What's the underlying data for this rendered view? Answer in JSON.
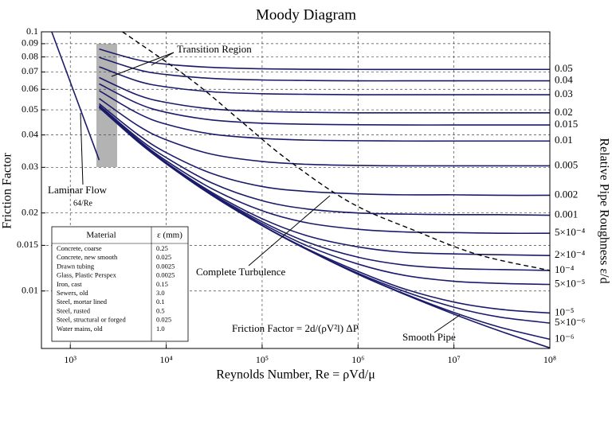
{
  "chart_data": {
    "type": "line",
    "title": "Moody Diagram",
    "x_label": "Reynolds Number, Re = ρVd/μ",
    "y_label": "Friction Factor",
    "y2_label": "Relative Pipe Roughness ε/d",
    "xscale": "log",
    "yscale": "log",
    "grid": true,
    "xlim": [
      500,
      100000000
    ],
    "ylim": [
      0.006,
      0.1
    ],
    "xticks": [
      {
        "value": 1000,
        "label": "10³"
      },
      {
        "value": 10000,
        "label": "10⁴"
      },
      {
        "value": 100000,
        "label": "10⁵"
      },
      {
        "value": 1000000,
        "label": "10⁶"
      },
      {
        "value": 10000000,
        "label": "10⁷"
      },
      {
        "value": 100000000,
        "label": "10⁸"
      }
    ],
    "yticks": [
      0.1,
      0.09,
      0.08,
      0.07,
      0.06,
      0.05,
      0.04,
      0.03,
      0.02,
      0.015,
      0.01
    ],
    "x": [
      2000,
      5000,
      10000,
      30000,
      100000,
      300000,
      1000000,
      3000000,
      10000000,
      30000000,
      100000000
    ],
    "series": [
      {
        "name": "0.05",
        "color": "#1b1b6b",
        "values": [
          0.0858,
          0.078,
          0.075,
          0.0729,
          0.072,
          0.0717,
          0.0716,
          0.0716,
          0.0716,
          0.0716,
          0.0716
        ]
      },
      {
        "name": "0.04",
        "color": "#1b1b6b",
        "values": [
          0.0797,
          0.0715,
          0.0684,
          0.0661,
          0.0652,
          0.0649,
          0.0647,
          0.0647,
          0.0647,
          0.0647,
          0.0647
        ]
      },
      {
        "name": "0.03",
        "color": "#1b1b6b",
        "values": [
          0.0733,
          0.0646,
          0.0613,
          0.0587,
          0.0577,
          0.0574,
          0.0572,
          0.0572,
          0.0572,
          0.0572,
          0.0572
        ]
      },
      {
        "name": "0.02",
        "color": "#1b1b6b",
        "values": [
          0.0666,
          0.0571,
          0.0534,
          0.0504,
          0.0493,
          0.0489,
          0.0487,
          0.0487,
          0.0487,
          0.0487,
          0.0487
        ]
      },
      {
        "name": "0.015",
        "color": "#1b1b6b",
        "values": [
          0.063,
          0.053,
          0.0489,
          0.0457,
          0.0444,
          0.044,
          0.0438,
          0.0437,
          0.0437,
          0.0437,
          0.0437
        ]
      },
      {
        "name": "0.01",
        "color": "#1b1b6b",
        "values": [
          0.0593,
          0.0486,
          0.044,
          0.0403,
          0.0388,
          0.0382,
          0.038,
          0.0379,
          0.0379,
          0.0379,
          0.0379
        ]
      },
      {
        "name": "0.005",
        "color": "#1b1b6b",
        "values": [
          0.0553,
          0.0436,
          0.0383,
          0.0337,
          0.0316,
          0.0308,
          0.0305,
          0.0304,
          0.0304,
          0.0304,
          0.0304
        ]
      },
      {
        "name": "0.002",
        "color": "#1b1b6b",
        "values": [
          0.0528,
          0.0403,
          0.0342,
          0.0284,
          0.0253,
          0.0242,
          0.0237,
          0.0235,
          0.0235,
          0.0234,
          0.0234
        ]
      },
      {
        "name": "0.001",
        "color": "#1b1b6b",
        "values": [
          0.052,
          0.0391,
          0.0327,
          0.0261,
          0.0223,
          0.0207,
          0.02,
          0.0198,
          0.0197,
          0.0197,
          0.0196
        ]
      },
      {
        "name": "5×10⁻⁴",
        "color": "#1b1b6b",
        "values": [
          0.0515,
          0.0385,
          0.0318,
          0.0248,
          0.0204,
          0.0183,
          0.0173,
          0.0169,
          0.0168,
          0.0167,
          0.0167
        ]
      },
      {
        "name": "2×10⁻⁴",
        "color": "#1b1b6b",
        "values": [
          0.0513,
          0.0381,
          0.0313,
          0.024,
          0.019,
          0.0163,
          0.0148,
          0.0141,
          0.0139,
          0.0138,
          0.0137
        ]
      },
      {
        "name": "10⁻⁴",
        "color": "#1b1b6b",
        "values": [
          0.0512,
          0.038,
          0.0311,
          0.0237,
          0.0185,
          0.0154,
          0.0135,
          0.0126,
          0.0122,
          0.0121,
          0.012
        ]
      },
      {
        "name": "5×10⁻⁵",
        "color": "#1b1b6b",
        "values": [
          0.0511,
          0.0379,
          0.0311,
          0.0235,
          0.0182,
          0.0149,
          0.0127,
          0.0115,
          0.0109,
          0.0107,
          0.0106
        ]
      },
      {
        "name": "10⁻⁵",
        "color": "#1b1b6b",
        "values": [
          0.0511,
          0.0379,
          0.031,
          0.0234,
          0.0179,
          0.0145,
          0.0119,
          0.0102,
          0.00906,
          0.0085,
          0.00822
        ]
      },
      {
        "name": "5×10⁻⁶",
        "color": "#1b1b6b",
        "values": [
          0.0511,
          0.0379,
          0.031,
          0.0234,
          0.0179,
          0.0144,
          0.0117,
          0.00998,
          0.00866,
          0.00793,
          0.00752
        ]
      },
      {
        "name": "10⁻⁶",
        "color": "#1b1b6b",
        "values": [
          0.0511,
          0.0379,
          0.031,
          0.0234,
          0.0179,
          0.0144,
          0.0116,
          0.00978,
          0.00826,
          0.00725,
          0.00651
        ]
      }
    ],
    "smooth_pipe": {
      "name": "Smooth Pipe",
      "color": "#1b1b6b",
      "values": [
        0.0511,
        0.0378,
        0.031,
        0.0234,
        0.0179,
        0.0144,
        0.0116,
        0.00973,
        0.00814,
        0.00701,
        0.00603
      ]
    },
    "laminar": {
      "name": "Laminar Flow",
      "formula": "64/Re",
      "color": "#1b1b6b",
      "x": [
        640,
        2000
      ],
      "values": [
        0.1,
        0.032
      ]
    },
    "complete_turbulence": {
      "name": "Complete Turbulence",
      "color": "#000000",
      "x": [
        3500,
        18000,
        57000,
        180000,
        840000,
        3900000,
        18000000,
        100000000
      ],
      "values": [
        0.1,
        0.0655,
        0.046,
        0.0323,
        0.0219,
        0.0171,
        0.0138,
        0.012
      ]
    },
    "transition_region": "Transition Region",
    "friction_formula": "Friction Factor = 2d/(ρV²l) ΔP"
  },
  "table": {
    "header": [
      "Material",
      "ε (mm)"
    ],
    "rows": [
      [
        "Concrete, coarse",
        "0.25"
      ],
      [
        "Concrete, new smooth",
        "0.025"
      ],
      [
        "Drawn tubing",
        "0.0025"
      ],
      [
        "Glass, Plastic Perspex",
        "0.0025"
      ],
      [
        "Iron, cast",
        "0.15"
      ],
      [
        "Sewers, old",
        "3.0"
      ],
      [
        "Steel, mortar lined",
        "0.1"
      ],
      [
        "Steel, rusted",
        "0.5"
      ],
      [
        "Steel, structural or forged",
        "0.025"
      ],
      [
        "Water mains, old",
        "1.0"
      ]
    ]
  }
}
